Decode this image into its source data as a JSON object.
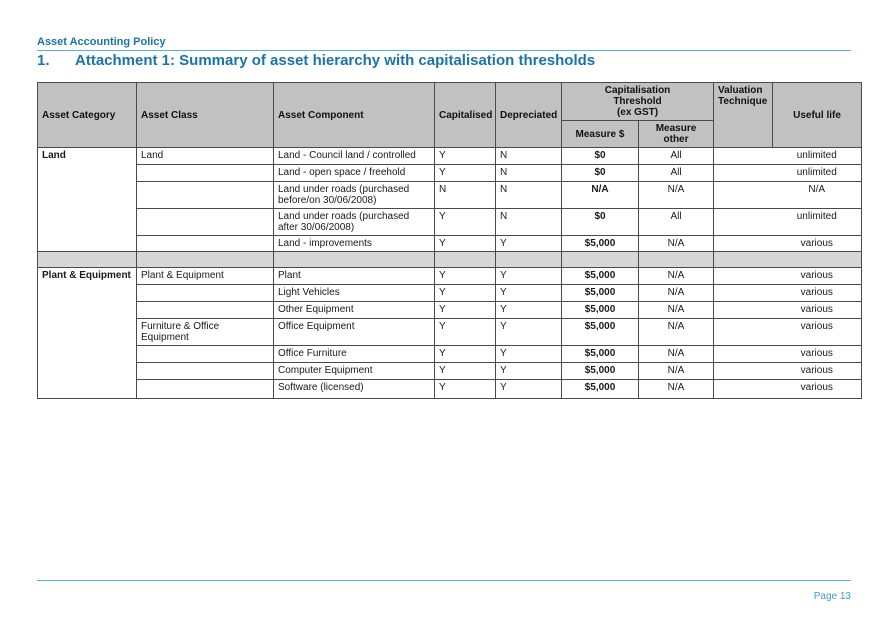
{
  "header": {
    "policy_title": "Asset Accounting Policy",
    "heading_number": "1.",
    "heading_title": "Attachment 1: Summary of asset hierarchy with capitalisation thresholds"
  },
  "table": {
    "header": {
      "asset_category": "Asset Category",
      "asset_class": "Asset Class",
      "asset_component": "Asset Component",
      "capitalised": "Capitalised",
      "depreciated": "Depreciated",
      "cap_threshold": "Capitalisation\nThreshold\n(ex GST)",
      "measure_dollar": "Measure $",
      "measure_other": "Measure\nother",
      "valuation_technique": "Valuation\nTechnique",
      "useful_life": "Useful life"
    },
    "rows": [
      {
        "type": "data",
        "category": "Land",
        "category_span": 5,
        "class": "Land",
        "component": "Land - Council land / controlled",
        "capitalised": "Y",
        "depreciated": "N",
        "measure": "$0",
        "other": "All",
        "valuation": "",
        "useful": "unlimited",
        "h": 17
      },
      {
        "type": "data",
        "class": "",
        "component": "Land - open space / freehold",
        "capitalised": "Y",
        "depreciated": "N",
        "measure": "$0",
        "other": "All",
        "valuation": "",
        "useful": "unlimited",
        "h": 17
      },
      {
        "type": "data",
        "class": "",
        "component": "Land under roads (purchased before/on 30/06/2008)",
        "capitalised": "N",
        "depreciated": "N",
        "measure": "N/A",
        "other": "N/A",
        "valuation": "",
        "useful": "N/A",
        "h": 23
      },
      {
        "type": "data",
        "class": "",
        "component": "Land under roads (purchased after 30/06/2008)",
        "capitalised": "Y",
        "depreciated": "N",
        "measure": "$0",
        "other": "All",
        "valuation": "",
        "useful": "unlimited",
        "h": 23
      },
      {
        "type": "data",
        "class": "",
        "component": "Land - improvements",
        "capitalised": "Y",
        "depreciated": "Y",
        "measure": "$5,000",
        "other": "N/A",
        "valuation": "",
        "useful": "various",
        "h": 16
      },
      {
        "type": "spacer",
        "h": 16
      },
      {
        "type": "data",
        "category": "Plant & Equipment",
        "category_span": 7,
        "class": "Plant & Equipment",
        "component": "Plant",
        "capitalised": "Y",
        "depreciated": "Y",
        "measure": "$5,000",
        "other": "N/A",
        "valuation": "",
        "useful": "various",
        "h": 17
      },
      {
        "type": "data",
        "class": "",
        "component": "Light Vehicles",
        "capitalised": "Y",
        "depreciated": "Y",
        "measure": "$5,000",
        "other": "N/A",
        "valuation": "",
        "useful": "various",
        "h": 17
      },
      {
        "type": "data",
        "class": "",
        "component": "Other Equipment",
        "capitalised": "Y",
        "depreciated": "Y",
        "measure": "$5,000",
        "other": "N/A",
        "valuation": "",
        "useful": "various",
        "h": 17
      },
      {
        "type": "data",
        "class": "Furniture & Office Equipment",
        "component": "Office Equipment",
        "capitalised": "Y",
        "depreciated": "Y",
        "measure": "$5,000",
        "other": "N/A",
        "valuation": "",
        "useful": "various",
        "h": 17
      },
      {
        "type": "data",
        "class": "",
        "component": "Office Furniture",
        "capitalised": "Y",
        "depreciated": "Y",
        "measure": "$5,000",
        "other": "N/A",
        "valuation": "",
        "useful": "various",
        "h": 17
      },
      {
        "type": "data",
        "class": "",
        "component": "Computer Equipment",
        "capitalised": "Y",
        "depreciated": "Y",
        "measure": "$5,000",
        "other": "N/A",
        "valuation": "",
        "useful": "various",
        "h": 17
      },
      {
        "type": "data",
        "class": "",
        "component": "Software (licensed)",
        "capitalised": "Y",
        "depreciated": "Y",
        "measure": "$5,000",
        "other": "N/A",
        "valuation": "",
        "useful": "various",
        "h": 19
      }
    ]
  },
  "footer": {
    "page_label": "Page 13"
  },
  "colors": {
    "heading": "#1B74A8",
    "rule": "#55B4D4",
    "page_number": "#3E9CC8",
    "header_fill": "#C1C1C1",
    "spacer_fill": "#D7D7D7",
    "border": "#4A4A4A"
  }
}
